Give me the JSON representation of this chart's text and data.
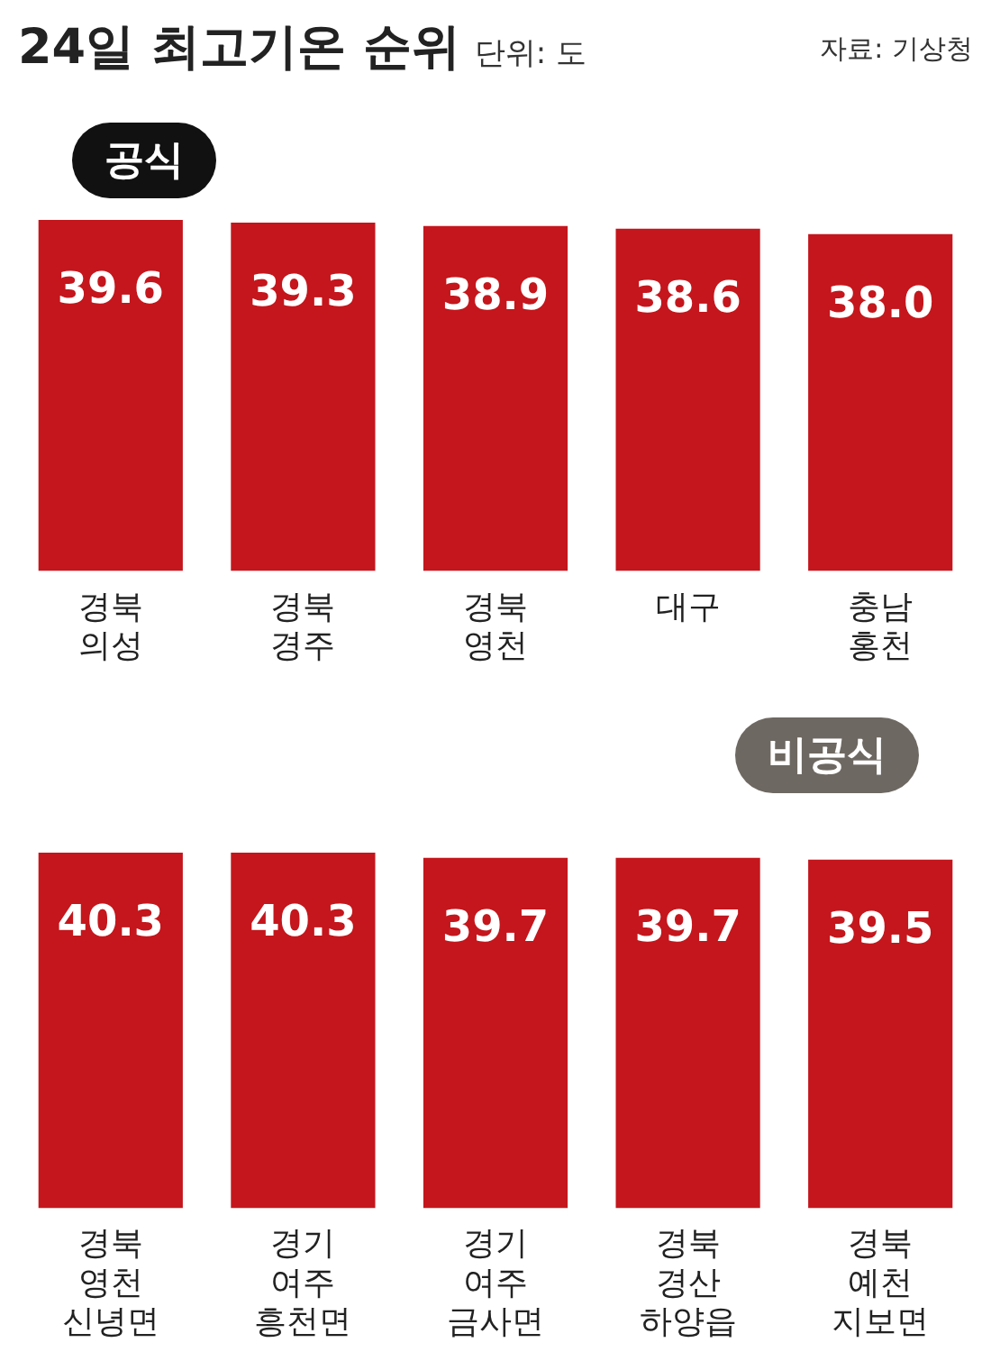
{
  "chart_data": [
    {
      "type": "bar",
      "title": "24일 최고기온 순위",
      "subtitle": "단위: 도",
      "annotations": [
        "공식",
        "자료: 기상청"
      ],
      "categories": [
        "경북 의성",
        "경북 경주",
        "경북 영천",
        "대구",
        "충남 홍천"
      ],
      "values": [
        39.6,
        39.3,
        38.9,
        38.6,
        38.0
      ],
      "value_labels": [
        "39.6",
        "39.3",
        "38.9",
        "38.6",
        "38.0"
      ],
      "color": "#c4161c",
      "grid": false,
      "legend": false
    },
    {
      "type": "bar",
      "annotations": [
        "비공식"
      ],
      "categories": [
        "경북 영천 신녕면",
        "경기 여주 흥천면",
        "경기 여주 금사면",
        "경북 경산 하양읍",
        "경북 예천 지보면"
      ],
      "values": [
        40.3,
        40.3,
        39.7,
        39.7,
        39.5
      ],
      "color": "#c4161c",
      "data_labels": true,
      "grid": false,
      "legend": false
    }
  ]
}
